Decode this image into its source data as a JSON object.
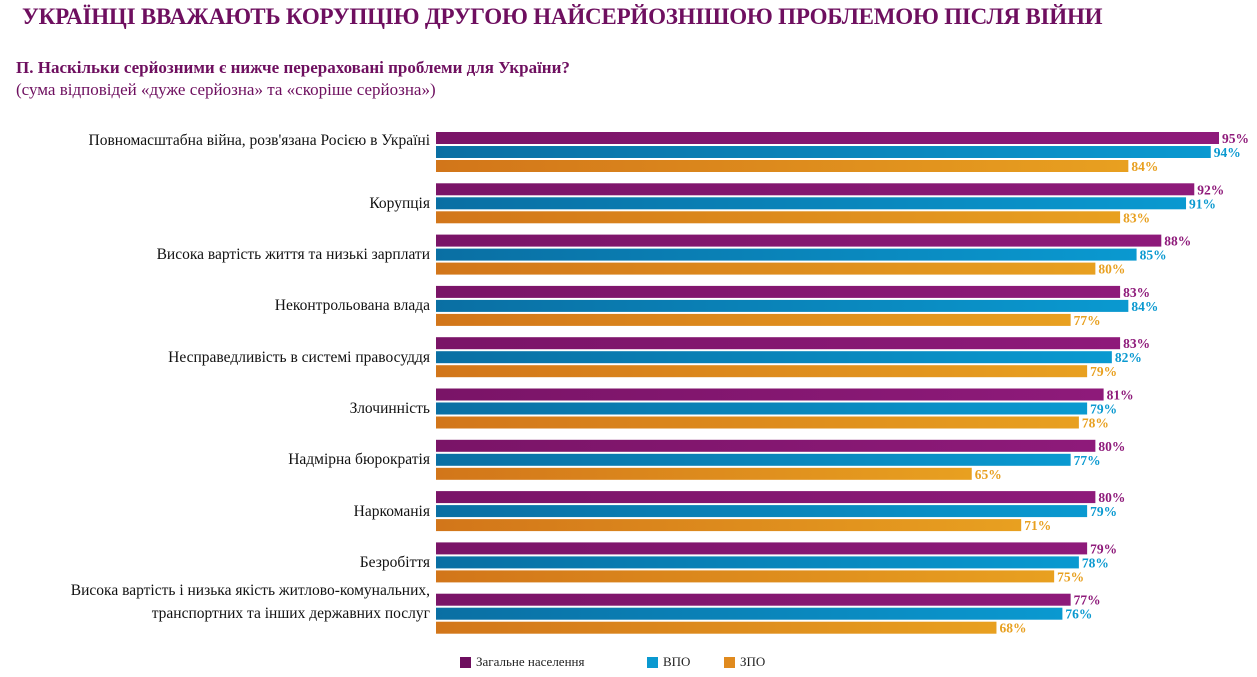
{
  "title": "УКРАЇНЦІ ВВАЖАЮТЬ КОРУПЦІЮ ДРУГОЮ НАЙСЕРЙОЗНІШОЮ ПРОБЛЕМОЮ ПІСЛЯ ВІЙНИ",
  "chart_data": {
    "type": "bar",
    "orientation": "horizontal",
    "title": "П. Наскільки серйозними є нижче перераховані проблеми для України?",
    "subtitle": "(сума відповідей «дуже серйозна» та «скоріше серйозна»)",
    "unit": "%",
    "xlim": [
      0,
      100
    ],
    "grid": false,
    "legend_position": "bottom",
    "categories": [
      "Повномасштабна війна, розв'язана Росією в Україні",
      "Корупція",
      "Висока вартість життя та низькі зарплати",
      "Неконтрольована влада",
      "Несправедливість в системі правосуддя",
      "Злочинність",
      "Надмірна бюрократія",
      "Наркоманія",
      "Безробіття",
      "Висока вартість і низька якість житлово-комунальних, транспортних та інших державних послуг"
    ],
    "series": [
      {
        "name": "Загальне населення",
        "color": "#7a1467",
        "color_light": "#8e1a7a",
        "values": [
          95,
          92,
          88,
          83,
          83,
          81,
          80,
          80,
          79,
          77
        ]
      },
      {
        "name": "ВПО",
        "color": "#0a6fa3",
        "color_light": "#0a99d0",
        "values": [
          94,
          91,
          85,
          84,
          82,
          79,
          77,
          79,
          78,
          76
        ]
      },
      {
        "name": "ЗПО",
        "color": "#d2761a",
        "color_light": "#e8a020",
        "values": [
          84,
          83,
          80,
          77,
          79,
          78,
          65,
          71,
          75,
          68
        ]
      }
    ]
  }
}
